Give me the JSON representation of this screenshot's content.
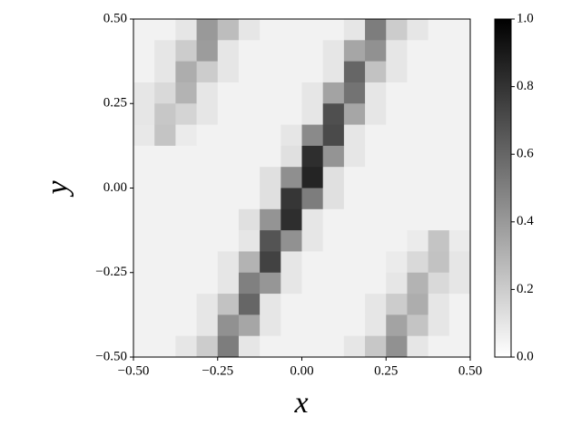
{
  "chart_data": {
    "type": "heatmap",
    "xlabel": "x",
    "ylabel": "y",
    "xlim": [
      -0.5,
      0.5
    ],
    "ylim": [
      -0.5,
      0.5
    ],
    "xticks": [
      {
        "value": -0.5,
        "label": "−0.50"
      },
      {
        "value": -0.25,
        "label": "−0.25"
      },
      {
        "value": 0,
        "label": "0.00"
      },
      {
        "value": 0.25,
        "label": "0.25"
      },
      {
        "value": 0.5,
        "label": "0.50"
      }
    ],
    "yticks": [
      {
        "value": -0.5,
        "label": "−0.50"
      },
      {
        "value": -0.25,
        "label": "−0.25"
      },
      {
        "value": 0,
        "label": "0.00"
      },
      {
        "value": 0.25,
        "label": "0.25"
      },
      {
        "value": 0.5,
        "label": "0.50"
      }
    ],
    "clim": [
      0,
      1
    ],
    "cticks": [
      {
        "value": 0,
        "label": "0.0"
      },
      {
        "value": 0.2,
        "label": "0.2"
      },
      {
        "value": 0.4,
        "label": "0.4"
      },
      {
        "value": 0.6,
        "label": "0.6"
      },
      {
        "value": 0.8,
        "label": "0.8"
      },
      {
        "value": 1,
        "label": "1.0"
      }
    ],
    "colors": [
      "#ffffff",
      "#000000"
    ],
    "row_order": "top-to-bottom",
    "values": [
      [
        0.05,
        0.05,
        0.1,
        0.4,
        0.26,
        0.1,
        0.05,
        0.05,
        0.05,
        0.05,
        0.1,
        0.51,
        0.2,
        0.1,
        0.05,
        0.05
      ],
      [
        0.05,
        0.1,
        0.2,
        0.39,
        0.1,
        0.05,
        0.05,
        0.05,
        0.05,
        0.1,
        0.35,
        0.43,
        0.1,
        0.05,
        0.05,
        0.05
      ],
      [
        0.05,
        0.1,
        0.32,
        0.2,
        0.1,
        0.05,
        0.05,
        0.05,
        0.05,
        0.1,
        0.6,
        0.24,
        0.1,
        0.05,
        0.05,
        0.05
      ],
      [
        0.1,
        0.15,
        0.3,
        0.1,
        0.05,
        0.05,
        0.05,
        0.05,
        0.1,
        0.36,
        0.55,
        0.1,
        0.05,
        0.05,
        0.05,
        0.05
      ],
      [
        0.1,
        0.22,
        0.17,
        0.1,
        0.05,
        0.05,
        0.05,
        0.05,
        0.1,
        0.69,
        0.35,
        0.1,
        0.05,
        0.05,
        0.05,
        0.05
      ],
      [
        0.09,
        0.23,
        0.08,
        0.05,
        0.05,
        0.05,
        0.05,
        0.1,
        0.46,
        0.71,
        0.1,
        0.05,
        0.05,
        0.05,
        0.05,
        0.05
      ],
      [
        0.05,
        0.05,
        0.05,
        0.05,
        0.05,
        0.05,
        0.05,
        0.12,
        0.82,
        0.42,
        0.1,
        0.05,
        0.05,
        0.05,
        0.05,
        0.05
      ],
      [
        0.05,
        0.05,
        0.05,
        0.05,
        0.05,
        0.05,
        0.12,
        0.44,
        0.86,
        0.12,
        0.05,
        0.05,
        0.05,
        0.05,
        0.05,
        0.05
      ],
      [
        0.05,
        0.05,
        0.05,
        0.05,
        0.05,
        0.05,
        0.12,
        0.79,
        0.51,
        0.12,
        0.05,
        0.05,
        0.05,
        0.05,
        0.05,
        0.05
      ],
      [
        0.05,
        0.05,
        0.05,
        0.05,
        0.05,
        0.12,
        0.42,
        0.82,
        0.1,
        0.05,
        0.05,
        0.05,
        0.05,
        0.05,
        0.05,
        0.05
      ],
      [
        0.05,
        0.05,
        0.05,
        0.05,
        0.05,
        0.1,
        0.67,
        0.43,
        0.1,
        0.05,
        0.05,
        0.05,
        0.05,
        0.08,
        0.23,
        0.08
      ],
      [
        0.05,
        0.05,
        0.05,
        0.05,
        0.1,
        0.3,
        0.74,
        0.1,
        0.05,
        0.05,
        0.05,
        0.05,
        0.08,
        0.15,
        0.24,
        0.1
      ],
      [
        0.05,
        0.05,
        0.05,
        0.05,
        0.1,
        0.5,
        0.41,
        0.1,
        0.05,
        0.05,
        0.05,
        0.05,
        0.1,
        0.3,
        0.15,
        0.1
      ],
      [
        0.05,
        0.05,
        0.05,
        0.1,
        0.24,
        0.6,
        0.1,
        0.05,
        0.05,
        0.05,
        0.05,
        0.1,
        0.2,
        0.32,
        0.1,
        0.05
      ],
      [
        0.05,
        0.05,
        0.05,
        0.1,
        0.43,
        0.35,
        0.1,
        0.05,
        0.05,
        0.05,
        0.05,
        0.1,
        0.36,
        0.23,
        0.1,
        0.05
      ],
      [
        0.05,
        0.05,
        0.1,
        0.2,
        0.51,
        0.1,
        0.05,
        0.05,
        0.05,
        0.05,
        0.1,
        0.22,
        0.43,
        0.1,
        0.05,
        0.05
      ]
    ]
  }
}
